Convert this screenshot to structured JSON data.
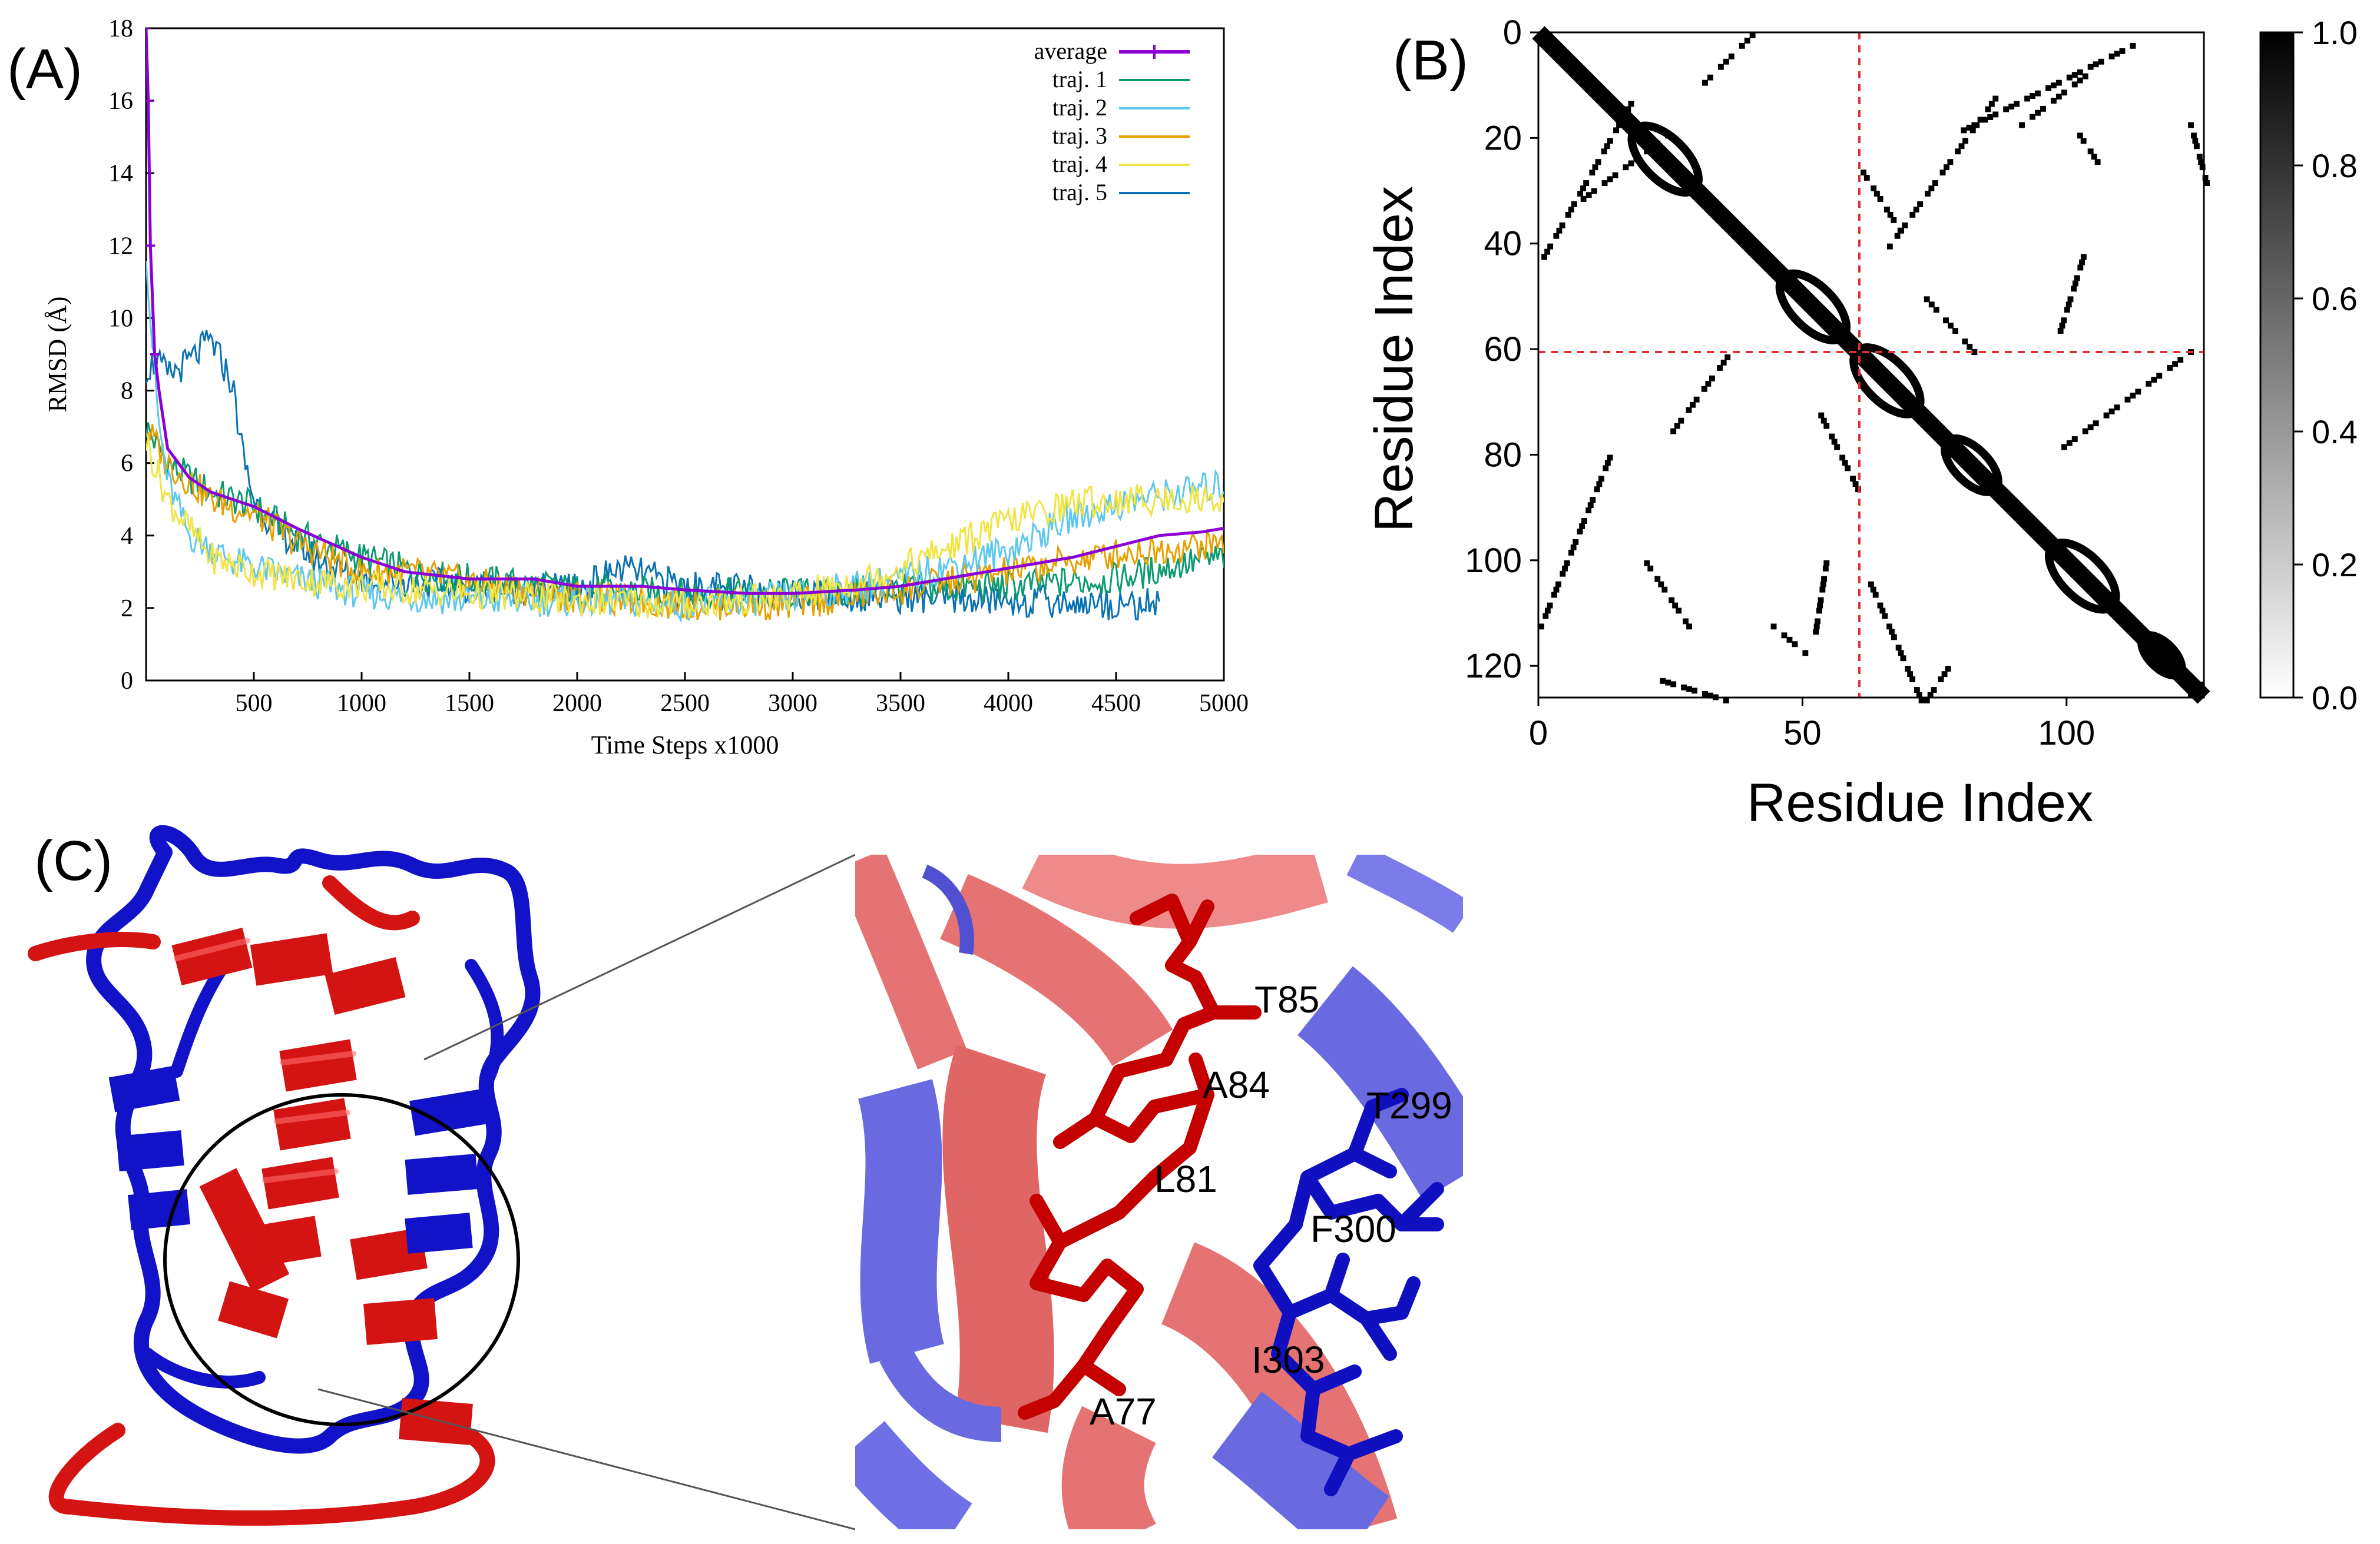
{
  "figure": {
    "panel_a_label": "(A)",
    "panel_b_label": "(B)",
    "panel_c_label": "(C)"
  },
  "colors": {
    "average": "#8b00d4",
    "traj1": "#0c9a72",
    "traj2": "#5ec8ec",
    "traj3": "#e6a000",
    "traj4": "#f0e442",
    "traj5": "#0a72b2",
    "helix_red": "#d41313",
    "loop_blue": "#1212c8",
    "guide_red": "#e03030"
  },
  "chart_data": [
    {
      "type": "line",
      "title": "",
      "xlabel": "Time Steps x1000",
      "ylabel": "RMSD (Å)",
      "xlim": [
        0,
        5000
      ],
      "ylim": [
        0,
        18
      ],
      "xticks": [
        "500",
        "1000",
        "1500",
        "2000",
        "2500",
        "3000",
        "3500",
        "4000",
        "4500",
        "5000"
      ],
      "yticks": [
        "0",
        "2",
        "4",
        "6",
        "8",
        "10",
        "12",
        "14",
        "16",
        "18"
      ],
      "legend_position": "top-right",
      "series": [
        {
          "name": "average",
          "color_key": "average",
          "x": [
            0,
            10,
            20,
            40,
            60,
            100,
            200,
            300,
            400,
            500,
            700,
            1000,
            1200,
            1500,
            1800,
            2000,
            2300,
            2500,
            2800,
            3000,
            3300,
            3500,
            3800,
            4000,
            4300,
            4500,
            4700,
            4900,
            5000
          ],
          "y": [
            18,
            16,
            12,
            9,
            8,
            6.4,
            5.6,
            5.2,
            5.0,
            4.8,
            4.2,
            3.4,
            3.0,
            2.8,
            2.8,
            2.6,
            2.6,
            2.5,
            2.4,
            2.4,
            2.5,
            2.6,
            2.9,
            3.1,
            3.4,
            3.7,
            4.0,
            4.1,
            4.2
          ]
        },
        {
          "name": "traj. 1",
          "color_key": "traj1",
          "x": [
            0,
            100,
            300,
            500,
            700,
            1000,
            1300,
            1500,
            2000,
            2500,
            3000,
            3500,
            4000,
            4500,
            4800,
            5000
          ],
          "y": [
            7.0,
            6.0,
            5.2,
            4.8,
            4.0,
            3.4,
            2.9,
            2.8,
            2.5,
            2.4,
            2.4,
            2.5,
            2.6,
            2.8,
            3.2,
            3.4
          ]
        },
        {
          "name": "traj. 2",
          "color_key": "traj2",
          "x": [
            0,
            20,
            60,
            100,
            200,
            400,
            700,
            1000,
            1500,
            2000,
            2500,
            3000,
            3500,
            4000,
            4300,
            4600,
            5000
          ],
          "y": [
            12,
            10,
            7,
            5.5,
            4.0,
            3.3,
            2.8,
            2.4,
            2.2,
            2.2,
            2.1,
            2.3,
            2.8,
            3.6,
            4.5,
            5.0,
            5.4
          ]
        },
        {
          "name": "traj. 3",
          "color_key": "traj3",
          "x": [
            0,
            100,
            300,
            500,
            700,
            1000,
            1200,
            1500,
            2000,
            2500,
            3000,
            3500,
            4000,
            4500,
            5000
          ],
          "y": [
            7.0,
            6.0,
            5.0,
            4.6,
            3.8,
            3.0,
            3.0,
            2.7,
            2.3,
            2.1,
            2.1,
            2.5,
            3.0,
            3.5,
            3.8
          ]
        },
        {
          "name": "traj. 4",
          "color_key": "traj4",
          "x": [
            0,
            100,
            300,
            500,
            700,
            1000,
            1500,
            2000,
            2500,
            3000,
            3400,
            3700,
            4000,
            4300,
            4600,
            5000
          ],
          "y": [
            6.6,
            5.0,
            3.4,
            3.0,
            2.8,
            2.6,
            2.4,
            2.2,
            2.1,
            2.3,
            2.9,
            3.6,
            4.4,
            4.9,
            5.0,
            5.0
          ]
        },
        {
          "name": "traj. 5",
          "color_key": "traj5",
          "x": [
            0,
            50,
            100,
            200,
            300,
            350,
            400,
            450,
            500,
            600,
            800,
            1000,
            1500,
            2000,
            2200,
            2500,
            3000,
            3500,
            4000,
            4500,
            4700
          ],
          "y": [
            8.6,
            8.8,
            8.4,
            8.8,
            9.4,
            8.8,
            8.2,
            6.2,
            5.0,
            4.2,
            3.3,
            2.8,
            2.6,
            2.5,
            3.1,
            2.6,
            2.4,
            2.3,
            2.2,
            2.1,
            2.1
          ]
        }
      ]
    },
    {
      "type": "heatmap",
      "title": "",
      "xlabel": "Residue Index",
      "ylabel": "Residue Index",
      "xlim": [
        0,
        126
      ],
      "ylim": [
        0,
        126
      ],
      "xticks": [
        "0",
        "50",
        "100"
      ],
      "yticks": [
        "0",
        "20",
        "40",
        "60",
        "80",
        "100",
        "120"
      ],
      "colorbar_ticks": [
        "0.0",
        "0.2",
        "0.4",
        "0.6",
        "0.8",
        "1.0"
      ],
      "colorbar_range": [
        0,
        1
      ],
      "divider_index": 60,
      "off_diagonal_segments": [
        {
          "start": [
            40,
            0
          ],
          "end": [
            31,
            9
          ]
        },
        {
          "start": [
            17,
            13
          ],
          "end": [
            0,
            43
          ]
        },
        {
          "start": [
            24,
            19
          ],
          "end": [
            8,
            31
          ]
        },
        {
          "start": [
            36,
            60
          ],
          "end": [
            25,
            75
          ]
        },
        {
          "start": [
            13,
            80
          ],
          "end": [
            0,
            112
          ]
        },
        {
          "start": [
            20,
            100
          ],
          "end": [
            28,
            112
          ]
        },
        {
          "start": [
            44,
            112
          ],
          "end": [
            50,
            117
          ]
        },
        {
          "start": [
            22,
            122
          ],
          "end": [
            35,
            126
          ]
        },
        {
          "start": [
            53,
            72
          ],
          "end": [
            60,
            86
          ]
        },
        {
          "start": [
            54,
            100
          ],
          "end": [
            52,
            113
          ]
        },
        {
          "start": [
            112,
            2
          ],
          "end": [
            80,
            18
          ]
        },
        {
          "start": [
            104,
            7
          ],
          "end": [
            91,
            17
          ]
        },
        {
          "start": [
            86,
            12
          ],
          "end": [
            66,
            40
          ]
        },
        {
          "start": [
            61,
            26
          ],
          "end": [
            68,
            37
          ]
        },
        {
          "start": [
            123,
            17
          ],
          "end": [
            126,
            28
          ]
        },
        {
          "start": [
            103,
            41
          ],
          "end": [
            98,
            57
          ]
        },
        {
          "start": [
            73,
            50
          ],
          "end": [
            82,
            60
          ]
        },
        {
          "start": [
            102,
            19
          ],
          "end": [
            106,
            25
          ]
        },
        {
          "start": [
            123,
            60
          ],
          "end": [
            99,
            78
          ]
        },
        {
          "start": [
            62,
            103
          ],
          "end": [
            72,
            126
          ]
        },
        {
          "start": [
            77,
            120
          ],
          "end": [
            73,
            126
          ]
        }
      ]
    }
  ],
  "panel_c": {
    "labels": [
      "T85",
      "A84",
      "T299",
      "L81",
      "F300",
      "I303",
      "A77"
    ]
  }
}
